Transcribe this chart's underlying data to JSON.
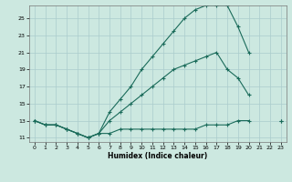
{
  "xlabel": "Humidex (Indice chaleur)",
  "bg_color": "#cce8e0",
  "grid_color": "#aacccc",
  "line_color": "#1a6b5a",
  "xlim": [
    -0.5,
    23.5
  ],
  "ylim": [
    10.5,
    26.5
  ],
  "xticks": [
    0,
    1,
    2,
    3,
    4,
    5,
    6,
    7,
    8,
    9,
    10,
    11,
    12,
    13,
    14,
    15,
    16,
    17,
    18,
    19,
    20,
    21,
    22,
    23
  ],
  "yticks": [
    11,
    13,
    15,
    17,
    19,
    21,
    23,
    25
  ],
  "line1_x": [
    0,
    1,
    2,
    3,
    4,
    5,
    6,
    7,
    8,
    9,
    10,
    11,
    12,
    13,
    14,
    15,
    16,
    17,
    18,
    19,
    20
  ],
  "line1_y": [
    13,
    12.5,
    12.5,
    12,
    11.5,
    11,
    11.5,
    14,
    15.5,
    17,
    19,
    20.5,
    22,
    23.5,
    25,
    26,
    26.5,
    26.5,
    26.5,
    24,
    21
  ],
  "line2_x": [
    0,
    1,
    2,
    3,
    4,
    5,
    6,
    7,
    8,
    9,
    10,
    11,
    12,
    13,
    14,
    15,
    16,
    17,
    18,
    19,
    20,
    21,
    22,
    23
  ],
  "line2_y": [
    13,
    12.5,
    12.5,
    12,
    11.5,
    11,
    11.5,
    13,
    14,
    15,
    16,
    17,
    18,
    19,
    19.5,
    20,
    20.5,
    21,
    19,
    18,
    16,
    null,
    null,
    13
  ],
  "line3_x": [
    0,
    1,
    2,
    3,
    4,
    5,
    6,
    7,
    8,
    9,
    10,
    11,
    12,
    13,
    14,
    15,
    16,
    17,
    18,
    19,
    20,
    21,
    22,
    23
  ],
  "line3_y": [
    13,
    12.5,
    12.5,
    12,
    11.5,
    11,
    11.5,
    11.5,
    12,
    12,
    12,
    12,
    12,
    12,
    12,
    12,
    12.5,
    12.5,
    12.5,
    13,
    13,
    null,
    null,
    13
  ]
}
